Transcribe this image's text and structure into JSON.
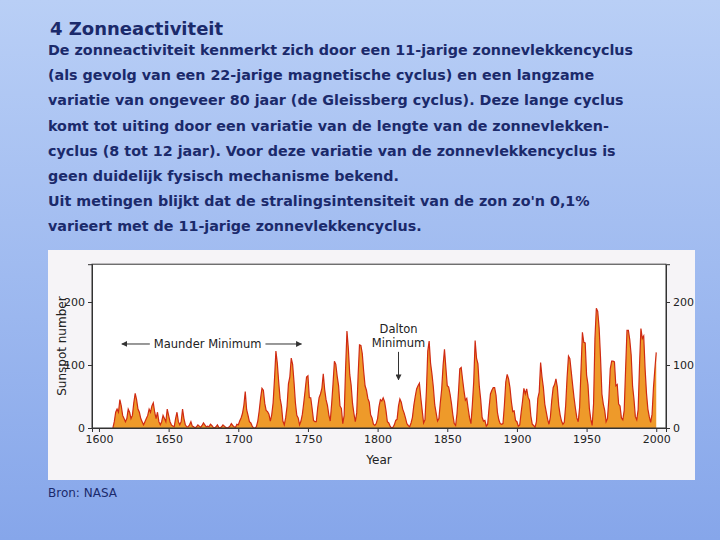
{
  "slide": {
    "heading": "4 Zonneactiviteit",
    "paragraph": [
      "De zonneactiviteit kenmerkt zich door een 11-jarige zonnevlekkencyclus",
      "(als gevolg van een 22-jarige magnetische cyclus) en een langzame",
      "variatie van ongeveer 80 jaar (de Gleissberg cyclus). Deze lange cyclus",
      "komt tot uiting door een variatie van de lengte van de zonnevlekken-",
      "cyclus (8 tot 12 jaar). Voor deze variatie van de zonnevlekkencyclus is",
      "geen duidelijk fysisch mechanisme bekend.",
      "Uit metingen blijkt dat de stralingsintensiteit van de zon zo'n 0,1%",
      "varieert met de 11-jarige zonnevlekkencyclus."
    ],
    "source": "Bron: NASA"
  },
  "chart_data": {
    "type": "area",
    "xlabel": "Year",
    "ylabel": "Sunspot number",
    "color": "#ee9a2a",
    "xlim": [
      1595,
      2007
    ],
    "xticks": [
      1600,
      1650,
      1700,
      1750,
      1800,
      1850,
      1900,
      1950,
      2000
    ],
    "ylim": [
      0,
      260
    ],
    "yticks": [
      0,
      100,
      200
    ],
    "annotations": [
      {
        "lines": [
          "Maunder Minimum"
        ],
        "x": 1678,
        "y": 127
      },
      {
        "lines": [
          "Dalton",
          "Minimum"
        ],
        "x": 1815,
        "y": 151
      }
    ],
    "x": [
      1610,
      1611,
      1612,
      1613,
      1614,
      1615,
      1616,
      1617,
      1618,
      1619,
      1620,
      1621,
      1622,
      1623,
      1624,
      1625,
      1626,
      1627,
      1628,
      1629,
      1630,
      1631,
      1632,
      1633,
      1634,
      1635,
      1636,
      1637,
      1638,
      1639,
      1640,
      1641,
      1642,
      1643,
      1644,
      1645,
      1646,
      1647,
      1648,
      1649,
      1650,
      1651,
      1652,
      1653,
      1654,
      1655,
      1656,
      1657,
      1658,
      1659,
      1660,
      1661,
      1662,
      1663,
      1664,
      1665,
      1666,
      1667,
      1668,
      1669,
      1670,
      1671,
      1672,
      1673,
      1674,
      1675,
      1676,
      1677,
      1678,
      1679,
      1680,
      1681,
      1682,
      1683,
      1684,
      1685,
      1686,
      1687,
      1688,
      1689,
      1690,
      1691,
      1692,
      1693,
      1694,
      1695,
      1696,
      1697,
      1698,
      1699,
      1700,
      1701,
      1702,
      1703,
      1704,
      1705,
      1706,
      1707,
      1708,
      1709,
      1710,
      1711,
      1712,
      1713,
      1714,
      1715,
      1716,
      1717,
      1718,
      1719,
      1720,
      1721,
      1722,
      1723,
      1724,
      1725,
      1726,
      1727,
      1728,
      1729,
      1730,
      1731,
      1732,
      1733,
      1734,
      1735,
      1736,
      1737,
      1738,
      1739,
      1740,
      1741,
      1742,
      1743,
      1744,
      1745,
      1746,
      1747,
      1748,
      1749,
      1750,
      1751,
      1752,
      1753,
      1754,
      1755,
      1756,
      1757,
      1758,
      1759,
      1760,
      1761,
      1762,
      1763,
      1764,
      1765,
      1766,
      1767,
      1768,
      1769,
      1770,
      1771,
      1772,
      1773,
      1774,
      1775,
      1776,
      1777,
      1778,
      1779,
      1780,
      1781,
      1782,
      1783,
      1784,
      1785,
      1786,
      1787,
      1788,
      1789,
      1790,
      1791,
      1792,
      1793,
      1794,
      1795,
      1796,
      1797,
      1798,
      1799,
      1800,
      1801,
      1802,
      1803,
      1804,
      1805,
      1806,
      1807,
      1808,
      1809,
      1810,
      1811,
      1812,
      1813,
      1814,
      1815,
      1816,
      1817,
      1818,
      1819,
      1820,
      1821,
      1822,
      1823,
      1824,
      1825,
      1826,
      1827,
      1828,
      1829,
      1830,
      1831,
      1832,
      1833,
      1834,
      1835,
      1836,
      1837,
      1838,
      1839,
      1840,
      1841,
      1842,
      1843,
      1844,
      1845,
      1846,
      1847,
      1848,
      1849,
      1850,
      1851,
      1852,
      1853,
      1854,
      1855,
      1856,
      1857,
      1858,
      1859,
      1860,
      1861,
      1862,
      1863,
      1864,
      1865,
      1866,
      1867,
      1868,
      1869,
      1870,
      1871,
      1872,
      1873,
      1874,
      1875,
      1876,
      1877,
      1878,
      1879,
      1880,
      1881,
      1882,
      1883,
      1884,
      1885,
      1886,
      1887,
      1888,
      1889,
      1890,
      1891,
      1892,
      1893,
      1894,
      1895,
      1896,
      1897,
      1898,
      1899,
      1900,
      1901,
      1902,
      1903,
      1904,
      1905,
      1906,
      1907,
      1908,
      1909,
      1910,
      1911,
      1912,
      1913,
      1914,
      1915,
      1916,
      1917,
      1918,
      1919,
      1920,
      1921,
      1922,
      1923,
      1924,
      1925,
      1926,
      1927,
      1928,
      1929,
      1930,
      1931,
      1932,
      1933,
      1934,
      1935,
      1936,
      1937,
      1938,
      1939,
      1940,
      1941,
      1942,
      1943,
      1944,
      1945,
      1946,
      1947,
      1948,
      1949,
      1950,
      1951,
      1952,
      1953,
      1954,
      1955,
      1956,
      1957,
      1958,
      1959,
      1960,
      1961,
      1962,
      1963,
      1964,
      1965,
      1966,
      1967,
      1968,
      1969,
      1970,
      1971,
      1972,
      1973,
      1974,
      1975,
      1976,
      1977,
      1978,
      1979,
      1980,
      1981,
      1982,
      1983,
      1984,
      1985,
      1986,
      1987,
      1988,
      1989,
      1990,
      1991,
      1992,
      1993,
      1994,
      1995,
      1996,
      1997,
      1998,
      1999,
      2000
    ],
    "values": [
      0,
      10,
      25,
      30,
      25,
      45,
      35,
      20,
      15,
      10,
      15,
      30,
      25,
      15,
      20,
      40,
      55,
      45,
      30,
      25,
      15,
      10,
      5,
      10,
      15,
      20,
      30,
      25,
      35,
      40,
      25,
      15,
      25,
      10,
      5,
      10,
      20,
      15,
      10,
      30,
      20,
      10,
      5,
      3,
      2,
      15,
      25,
      10,
      5,
      10,
      30,
      15,
      5,
      2,
      2,
      5,
      10,
      3,
      2,
      0,
      2,
      5,
      3,
      1,
      4,
      8,
      5,
      2,
      3,
      2,
      6,
      4,
      1,
      0,
      2,
      5,
      1,
      0,
      2,
      5,
      3,
      1,
      0,
      1,
      3,
      7,
      4,
      2,
      1,
      6,
      5,
      11,
      16,
      23,
      36,
      58,
      29,
      20,
      10,
      8,
      3,
      0,
      0,
      2,
      11,
      27,
      47,
      63,
      60,
      39,
      28,
      26,
      22,
      11,
      21,
      40,
      78,
      122,
      103,
      73,
      47,
      35,
      11,
      5,
      16,
      34,
      70,
      81,
      111,
      101,
      73,
      40,
      20,
      16,
      5,
      11,
      22,
      40,
      60,
      81,
      83,
      48,
      48,
      31,
      12,
      10,
      10,
      32,
      48,
      54,
      63,
      86,
      61,
      45,
      36,
      21,
      11,
      38,
      70,
      106,
      101,
      82,
      67,
      35,
      31,
      7,
      20,
      93,
      154,
      126,
      85,
      68,
      39,
      23,
      10,
      24,
      83,
      132,
      131,
      118,
      90,
      67,
      60,
      47,
      41,
      21,
      16,
      6,
      4,
      7,
      15,
      34,
      45,
      43,
      48,
      42,
      28,
      10,
      8,
      3,
      0,
      1,
      5,
      12,
      14,
      35,
      46,
      41,
      30,
      24,
      16,
      7,
      4,
      2,
      8,
      17,
      36,
      50,
      62,
      67,
      71,
      48,
      28,
      8,
      13,
      57,
      122,
      138,
      103,
      86,
      65,
      37,
      24,
      11,
      15,
      40,
      62,
      99,
      125,
      96,
      67,
      65,
      54,
      39,
      21,
      7,
      4,
      23,
      55,
      94,
      96,
      77,
      59,
      44,
      47,
      31,
      16,
      7,
      37,
      74,
      139,
      111,
      102,
      66,
      45,
      17,
      11,
      12,
      3,
      6,
      32,
      54,
      60,
      64,
      64,
      52,
      25,
      13,
      7,
      6,
      7,
      36,
      73,
      85,
      78,
      64,
      42,
      26,
      27,
      12,
      10,
      3,
      5,
      24,
      42,
      63,
      54,
      62,
      49,
      44,
      19,
      6,
      4,
      1,
      10,
      47,
      57,
      104,
      81,
      64,
      38,
      26,
      14,
      6,
      17,
      44,
      64,
      69,
      78,
      65,
      36,
      21,
      11,
      6,
      9,
      36,
      80,
      114,
      110,
      89,
      68,
      48,
      31,
      16,
      10,
      33,
      93,
      152,
      136,
      135,
      84,
      69,
      31,
      14,
      4,
      38,
      142,
      190,
      185,
      159,
      112,
      54,
      38,
      28,
      10,
      15,
      47,
      94,
      106,
      106,
      105,
      67,
      69,
      38,
      35,
      16,
      13,
      28,
      93,
      155,
      155,
      140,
      116,
      67,
      46,
      18,
      13,
      29,
      100,
      158,
      142,
      146,
      94,
      55,
      30,
      18,
      9,
      22,
      64,
      93,
      120
    ]
  }
}
